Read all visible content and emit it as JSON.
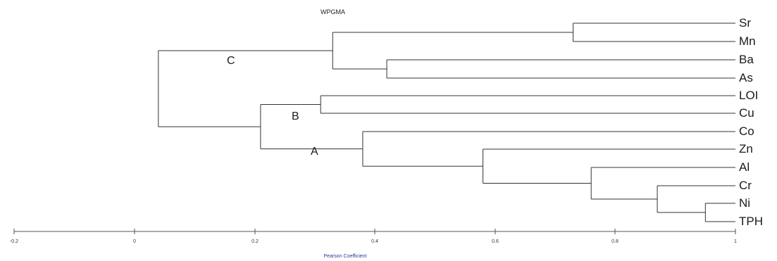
{
  "title": "WPGMA",
  "xlabel": "Pearson Coefficient",
  "x_ticks": [
    "-0.2",
    "0",
    "0.2",
    "0.4",
    "0.6",
    "0.8",
    "1"
  ],
  "leaves": [
    "Sr",
    "Mn",
    "Ba",
    "As",
    "LOI",
    "Cu",
    "Co",
    "Zn",
    "Al",
    "Cr",
    "Ni",
    "TPH"
  ],
  "clusters": [
    "C",
    "B",
    "A"
  ],
  "chart_data": {
    "type": "dendrogram",
    "method": "WPGMA",
    "title": "WPGMA",
    "xlabel": "Pearson Coefficient",
    "xlim": [
      -0.2,
      1
    ],
    "leaves": [
      "Sr",
      "Mn",
      "Ba",
      "As",
      "LOI",
      "Cu",
      "Co",
      "Zn",
      "Al",
      "Cr",
      "Ni",
      "TPH"
    ],
    "merges": [
      {
        "join": [
          "Sr",
          "Mn"
        ],
        "similarity": 0.73
      },
      {
        "join": [
          "Ba",
          "As"
        ],
        "similarity": 0.42
      },
      {
        "join": [
          "Sr,Mn",
          "Ba,As"
        ],
        "similarity": 0.33
      },
      {
        "join": [
          "LOI",
          "Cu"
        ],
        "similarity": 0.31
      },
      {
        "join": [
          "Ni",
          "TPH"
        ],
        "similarity": 0.95
      },
      {
        "join": [
          "Cr",
          "Ni,TPH"
        ],
        "similarity": 0.87
      },
      {
        "join": [
          "Al",
          "Cr,Ni,TPH"
        ],
        "similarity": 0.76
      },
      {
        "join": [
          "Zn",
          "Al,Cr,Ni,TPH"
        ],
        "similarity": 0.58
      },
      {
        "join": [
          "Co",
          "Zn,Al,Cr,Ni,TPH"
        ],
        "similarity": 0.38
      },
      {
        "join": [
          "LOI,Cu",
          "Co..TPH"
        ],
        "similarity": 0.21
      },
      {
        "join": [
          "Sr..As",
          "LOI..TPH"
        ],
        "similarity": 0.04
      }
    ],
    "cluster_labels": [
      "C",
      "B",
      "A"
    ]
  }
}
